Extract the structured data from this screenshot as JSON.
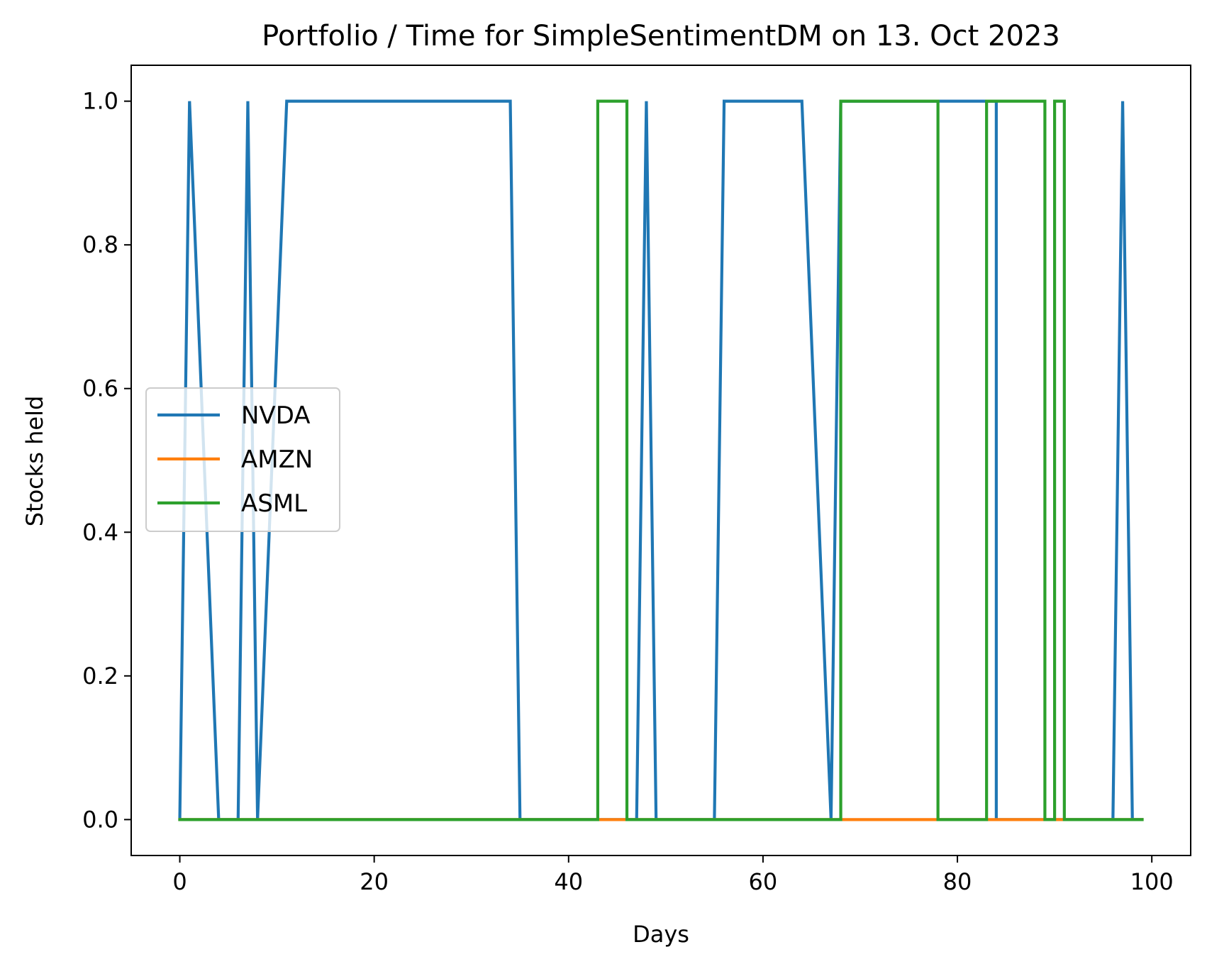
{
  "chart_data": {
    "type": "line",
    "title": "Portfolio / Time for SimpleSentimentDM on 13. Oct 2023",
    "xlabel": "Days",
    "ylabel": "Stocks held",
    "xlim": [
      -5,
      104
    ],
    "ylim": [
      -0.05,
      1.05
    ],
    "x_ticks": [
      0,
      20,
      40,
      60,
      80,
      100
    ],
    "x_tick_labels": [
      "0",
      "20",
      "40",
      "60",
      "80",
      "100"
    ],
    "y_ticks": [
      0.0,
      0.2,
      0.4,
      0.6,
      0.8,
      1.0
    ],
    "y_tick_labels": [
      "0.0",
      "0.2",
      "0.4",
      "0.6",
      "0.8",
      "1.0"
    ],
    "grid": false,
    "legend_position": "center-left",
    "series": [
      {
        "name": "NVDA",
        "color": "#1f77b4",
        "points": [
          [
            0,
            0
          ],
          [
            1,
            1
          ],
          [
            4,
            0
          ],
          [
            6,
            0
          ],
          [
            7,
            1
          ],
          [
            8,
            0
          ],
          [
            11,
            1
          ],
          [
            34,
            1
          ],
          [
            35,
            0
          ],
          [
            47,
            0
          ],
          [
            48,
            1
          ],
          [
            49,
            0
          ],
          [
            55,
            0
          ],
          [
            56,
            1
          ],
          [
            64,
            1
          ],
          [
            67,
            0
          ],
          [
            68,
            1
          ],
          [
            84,
            1
          ],
          [
            84,
            0
          ],
          [
            96,
            0
          ],
          [
            97,
            1
          ],
          [
            98,
            0
          ],
          [
            99,
            0
          ]
        ]
      },
      {
        "name": "AMZN",
        "color": "#ff7f0e",
        "points": [
          [
            0,
            0
          ],
          [
            99,
            0
          ]
        ]
      },
      {
        "name": "ASML",
        "color": "#2ca02c",
        "points": [
          [
            0,
            0
          ],
          [
            43,
            0
          ],
          [
            43,
            1
          ],
          [
            46,
            1
          ],
          [
            46,
            0
          ],
          [
            68,
            0
          ],
          [
            68,
            1
          ],
          [
            78,
            1
          ],
          [
            78,
            0
          ],
          [
            83,
            0
          ],
          [
            83,
            1
          ],
          [
            89,
            1
          ],
          [
            89,
            0
          ],
          [
            90,
            0
          ],
          [
            90,
            1
          ],
          [
            91,
            1
          ],
          [
            91,
            0
          ],
          [
            99,
            0
          ]
        ]
      }
    ]
  }
}
